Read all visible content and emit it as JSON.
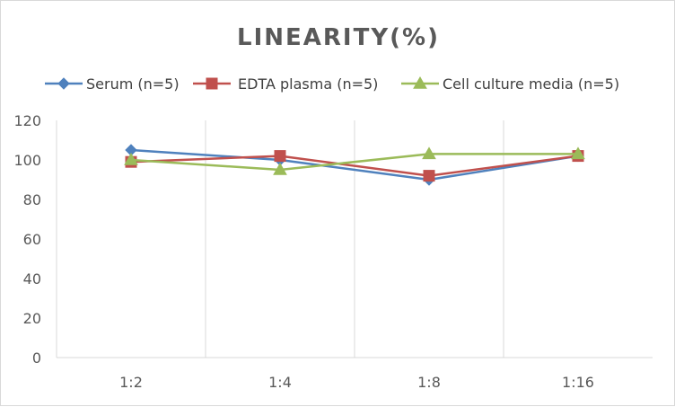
{
  "chart_data": {
    "type": "line",
    "title": "LINEARITY(%)",
    "xlabel": "",
    "ylabel": "",
    "categories": [
      "1:2",
      "1:4",
      "1:8",
      "1:16"
    ],
    "ylim": [
      0,
      120
    ],
    "yticks": [
      0,
      20,
      40,
      60,
      80,
      100,
      120
    ],
    "grid": "vertical",
    "legend_position": "top",
    "series": [
      {
        "name": "Serum (n=5)",
        "values": [
          105,
          100,
          90,
          102
        ],
        "color": "#4f81bd",
        "marker": "diamond"
      },
      {
        "name": "EDTA plasma (n=5)",
        "values": [
          99,
          102,
          92,
          102
        ],
        "color": "#c0504d",
        "marker": "square"
      },
      {
        "name": "Cell culture media (n=5)",
        "values": [
          100,
          95,
          103,
          103
        ],
        "color": "#9bbb59",
        "marker": "triangle"
      }
    ]
  }
}
